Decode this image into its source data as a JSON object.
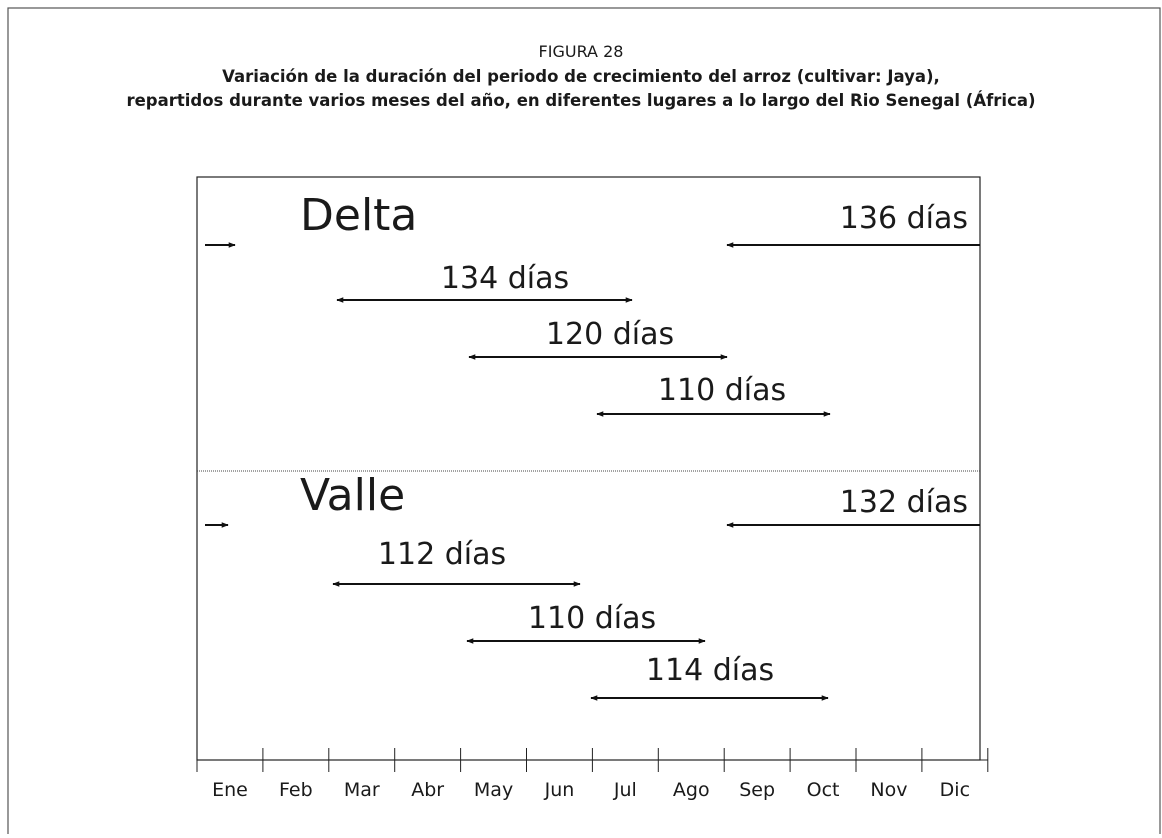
{
  "figure": {
    "label": "FIGURA 28",
    "title_lines": [
      "Variación de la duración del periodo de crecimiento del arroz (cultivar: Jaya),",
      "repartidos durante varios meses del año, en diferentes lugares a lo largo del Rio Senegal (África)"
    ]
  },
  "groups": [
    {
      "name": "Delta",
      "periods": [
        "136 días",
        "134 días",
        "120 días",
        "110 días"
      ]
    },
    {
      "name": "Valle",
      "periods": [
        "132 días",
        "112 días",
        "110 días",
        "114 días"
      ]
    }
  ],
  "months": [
    "Ene",
    "Feb",
    "Mar",
    "Abr",
    "May",
    "Jun",
    "Jul",
    "Ago",
    "Sep",
    "Oct",
    "Nov",
    "Dic"
  ]
}
